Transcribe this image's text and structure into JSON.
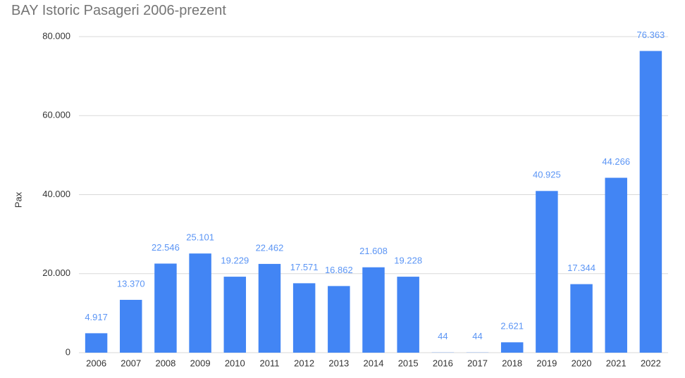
{
  "chart_data": {
    "type": "bar",
    "title": "BAY Istoric Pasageri 2006-prezent",
    "y_label": "Pax",
    "categories": [
      "2006",
      "2007",
      "2008",
      "2009",
      "2010",
      "2011",
      "2012",
      "2013",
      "2014",
      "2015",
      "2016",
      "2017",
      "2018",
      "2019",
      "2020",
      "2021",
      "2022"
    ],
    "values": [
      4917,
      13370,
      22546,
      25101,
      19229,
      22462,
      17571,
      16862,
      21608,
      19228,
      44,
      44,
      2621,
      40925,
      17344,
      44266,
      76363
    ],
    "value_labels": [
      "4.917",
      "13.370",
      "22.546",
      "25.101",
      "19.229",
      "22.462",
      "17.571",
      "16.862",
      "21.608",
      "19.228",
      "44",
      "44",
      "2.621",
      "40.925",
      "17.344",
      "44.266",
      "76.363"
    ],
    "color": "#4285f4",
    "ylim": [
      0,
      80000
    ],
    "yticks": [
      0,
      {
        "value": 20000,
        "label": "20.000"
      },
      {
        "value": 40000,
        "label": "40.000"
      },
      {
        "value": 60000,
        "label": "60.000"
      },
      {
        "value": 80000,
        "label": "80.000"
      }
    ],
    "grid": true
  }
}
